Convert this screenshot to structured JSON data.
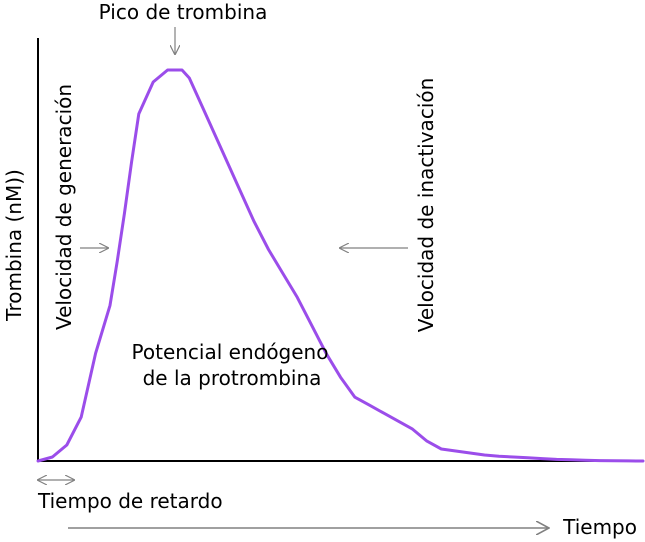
{
  "chart_data": {
    "type": "line",
    "title": "",
    "xlabel": "Tiempo",
    "ylabel": "Trombina (nM))",
    "grid": false,
    "line_color": "#9b4dea",
    "axis_color": "#000000",
    "arrow_color": "#808080",
    "x_ticks": "none",
    "y_ticks": "none",
    "x": [
      0,
      1,
      2,
      3,
      4,
      5,
      5.5,
      6,
      6.5,
      7,
      8,
      9,
      10,
      10.5,
      11,
      12,
      13,
      14,
      15,
      16,
      17,
      18,
      19,
      20,
      21,
      22,
      23,
      24,
      25,
      26,
      27,
      28,
      29,
      30,
      31,
      32,
      33,
      34,
      35,
      36,
      37,
      38,
      39,
      40,
      41,
      42
    ],
    "y": [
      0,
      1,
      4,
      11,
      27,
      39,
      50,
      62,
      75,
      87,
      95,
      98,
      98,
      96,
      92,
      84,
      76,
      68,
      60,
      53,
      47,
      41,
      34,
      27,
      21,
      16,
      14,
      12,
      10,
      8,
      5,
      3,
      2.5,
      2,
      1.5,
      1.2,
      1,
      0.8,
      0.6,
      0.4,
      0.3,
      0.2,
      0.1,
      0.05,
      0.02,
      0
    ],
    "annotations": {
      "peak": "Pico de trombina",
      "generation_rate": "Velocidad de generación",
      "inactivation_rate": "Velocidad de inactivación",
      "etp_line1": "Potencial endógeno",
      "etp_line2": "de la protrombina",
      "lag_time": "Tiempo de retardo"
    }
  }
}
